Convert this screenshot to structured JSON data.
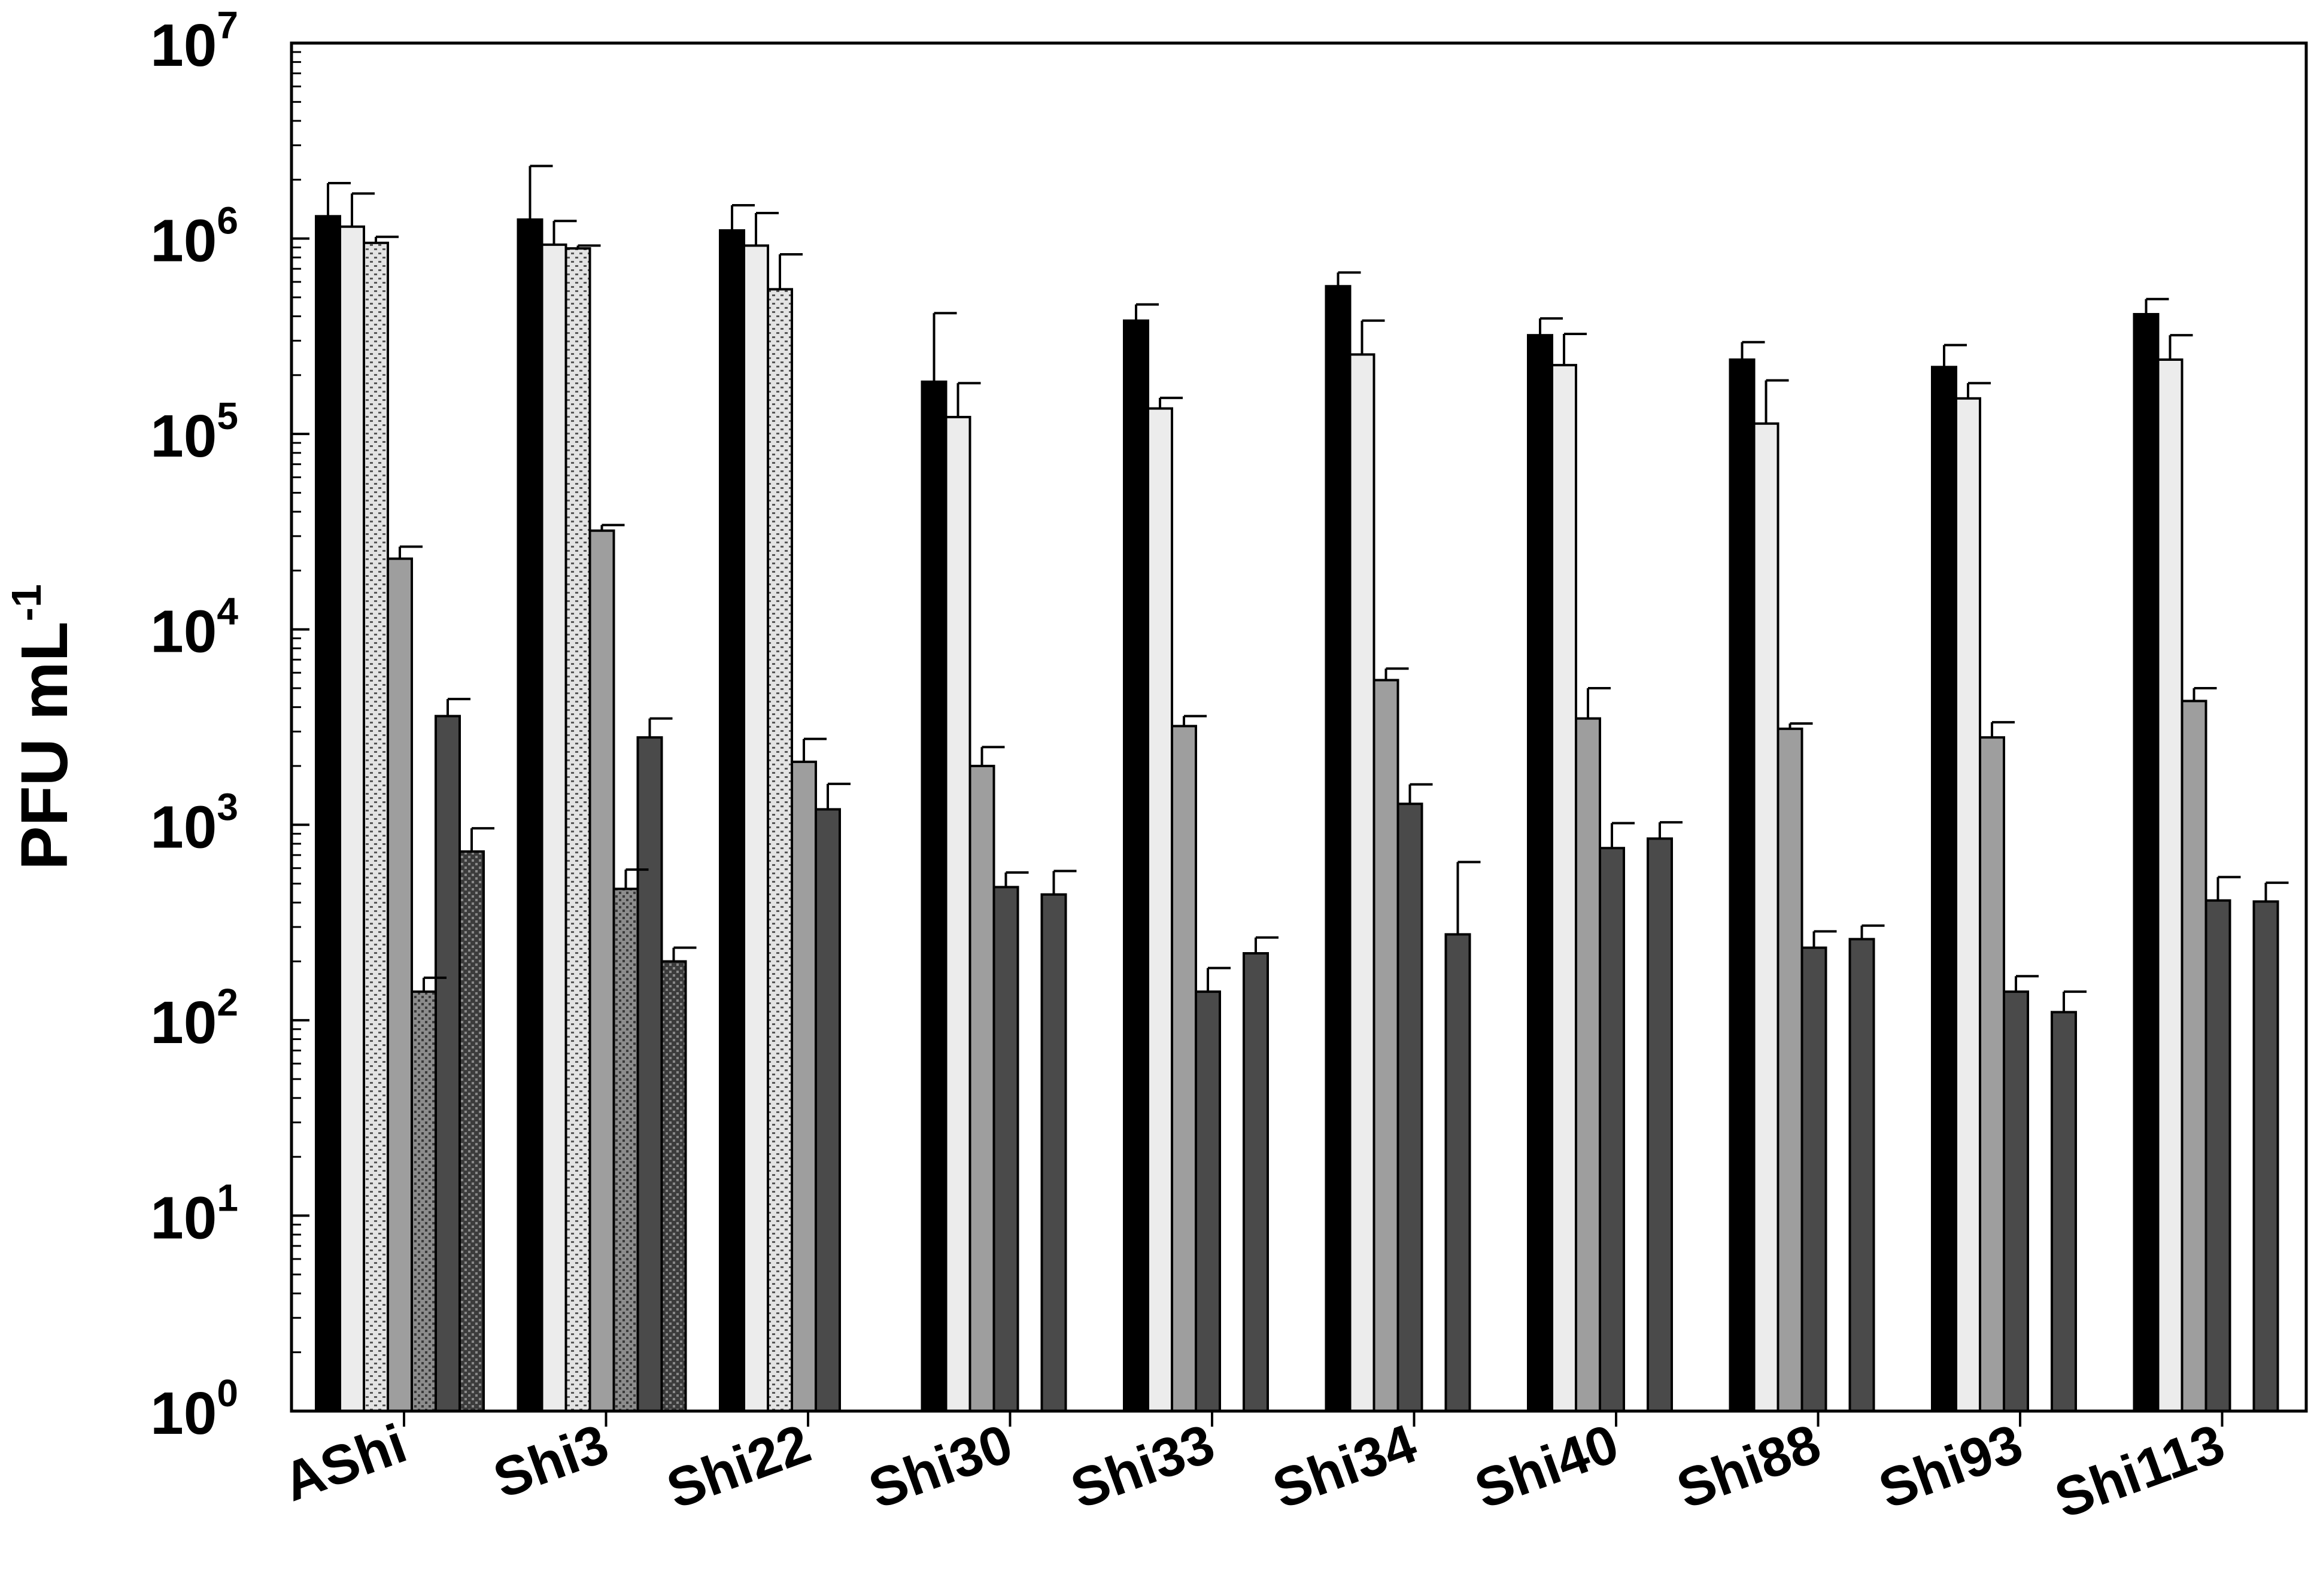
{
  "chart_data": {
    "type": "bar",
    "title": "",
    "xlabel": "",
    "ylabel": "PFU mL",
    "ylabel_superscript": "-1",
    "yscale": "log",
    "ylim_exponent": [
      0,
      7
    ],
    "ytick_labels": [
      {
        "base": "10",
        "exp": "0"
      },
      {
        "base": "10",
        "exp": "1"
      },
      {
        "base": "10",
        "exp": "2"
      },
      {
        "base": "10",
        "exp": "3"
      },
      {
        "base": "10",
        "exp": "4"
      },
      {
        "base": "10",
        "exp": "5"
      },
      {
        "base": "10",
        "exp": "6"
      },
      {
        "base": "10",
        "exp": "7"
      }
    ],
    "categories": [
      "AShi",
      "Shi3",
      "Shi22",
      "Shi30",
      "Shi33",
      "Shi34",
      "Shi40",
      "Shi88",
      "Shi93",
      "Shi113"
    ],
    "series": [
      {
        "fill": "#000000",
        "pattern": "solid",
        "values": [
          1300000,
          1250000,
          1100000,
          185000,
          380000,
          570000,
          320000,
          240000,
          220000,
          410000
        ],
        "errors": [
          620000,
          1100000,
          380000,
          230000,
          80000,
          100000,
          70000,
          55000,
          65000,
          80000
        ]
      },
      {
        "fill": "#ececec",
        "pattern": "solid",
        "values": [
          1150000,
          930000,
          920000,
          122000,
          135000,
          255000,
          225000,
          113000,
          152000,
          240000
        ],
        "errors": [
          550000,
          300000,
          430000,
          60000,
          18000,
          125000,
          100000,
          75000,
          30000,
          80000
        ]
      },
      {
        "fill": "#d9d9d9",
        "pattern": "dots-dark",
        "values": [
          950000,
          890000,
          550000,
          null,
          null,
          null,
          null,
          null,
          null,
          null
        ],
        "errors": [
          70000,
          30000,
          280000,
          null,
          null,
          null,
          null,
          null,
          null,
          null
        ]
      },
      {
        "fill": "#9e9e9e",
        "pattern": "solid",
        "values": [
          23000,
          32000,
          2100,
          2000,
          3200,
          5500,
          3500,
          3100,
          2800,
          4300
        ],
        "errors": [
          3500,
          2200,
          650,
          500,
          400,
          800,
          1500,
          200,
          550,
          700
        ]
      },
      {
        "fill": "#8a8a8a",
        "pattern": "dots-light",
        "values": [
          140,
          470,
          null,
          null,
          null,
          null,
          null,
          null,
          null,
          null
        ],
        "errors": [
          25,
          120,
          null,
          null,
          null,
          null,
          null,
          null,
          null,
          null
        ]
      },
      {
        "fill": "#4a4a4a",
        "pattern": "solid",
        "values": [
          3600,
          2800,
          1200,
          480,
          140,
          1280,
          760,
          235,
          140,
          410
        ],
        "errors": [
          800,
          700,
          420,
          90,
          45,
          330,
          260,
          50,
          28,
          130
        ]
      },
      {
        "fill": "#3a3a3a",
        "pattern": "dots-dark2",
        "values": [
          730,
          200,
          null,
          null,
          null,
          null,
          null,
          null,
          null,
          null
        ],
        "errors": [
          230,
          35,
          null,
          null,
          null,
          null,
          null,
          null,
          null,
          null
        ]
      },
      {
        "fill": "#4a4a4a",
        "pattern": "solid",
        "values": [
          null,
          null,
          null,
          440,
          220,
          275,
          850,
          260,
          110,
          405
        ],
        "errors": [
          null,
          null,
          null,
          140,
          45,
          370,
          180,
          45,
          30,
          100
        ]
      }
    ],
    "grid": false,
    "legend": "none"
  }
}
